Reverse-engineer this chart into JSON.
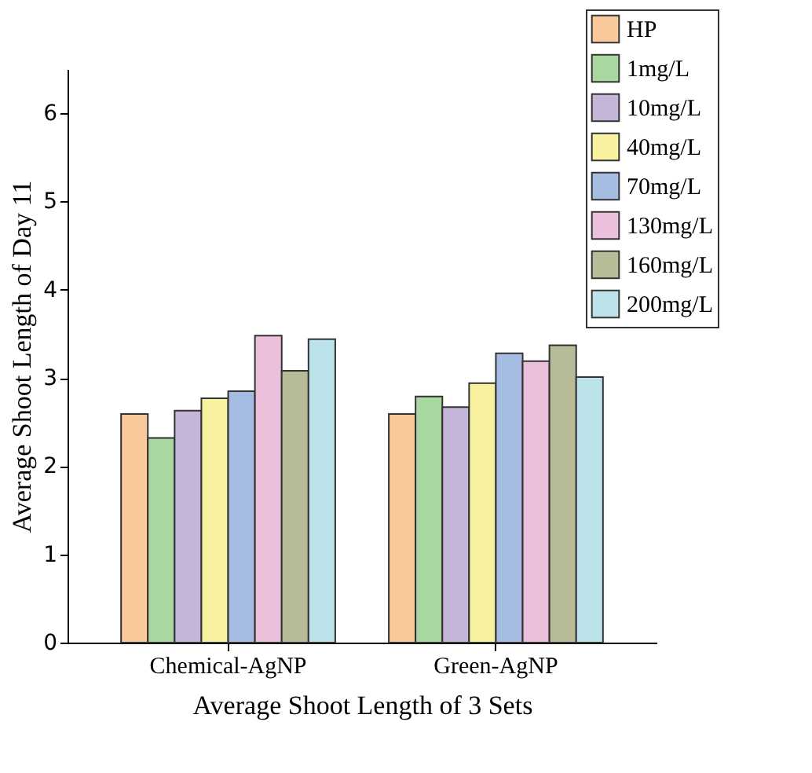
{
  "chart_data": {
    "type": "bar",
    "xlabel": "Average Shoot Length of 3 Sets",
    "ylabel": "Average Shoot Length of  Day 11",
    "categories": [
      "Chemical-AgNP",
      "Green-AgNP"
    ],
    "series": [
      {
        "name": "HP",
        "color": "#f9c89b",
        "values": [
          2.59,
          2.59
        ]
      },
      {
        "name": "1mg/L",
        "color": "#a8d8a0",
        "values": [
          2.32,
          2.79
        ]
      },
      {
        "name": "10mg/L",
        "color": "#c5b5d8",
        "values": [
          2.63,
          2.67
        ]
      },
      {
        "name": "40mg/L",
        "color": "#f8f2a0",
        "values": [
          2.77,
          2.94
        ]
      },
      {
        "name": "70mg/L",
        "color": "#a5bde3",
        "values": [
          2.85,
          3.28
        ]
      },
      {
        "name": "130mg/L",
        "color": "#ecc0dc",
        "values": [
          3.48,
          3.19
        ]
      },
      {
        "name": "160mg/L",
        "color": "#b8bb98",
        "values": [
          3.08,
          3.37
        ]
      },
      {
        "name": "200mg/L",
        "color": "#bde3ea",
        "values": [
          3.44,
          3.01
        ]
      }
    ],
    "ylim": [
      0,
      6.5
    ],
    "yticks": [
      0,
      1,
      2,
      3,
      4,
      5,
      6
    ],
    "grid": false,
    "legend": "top right"
  }
}
